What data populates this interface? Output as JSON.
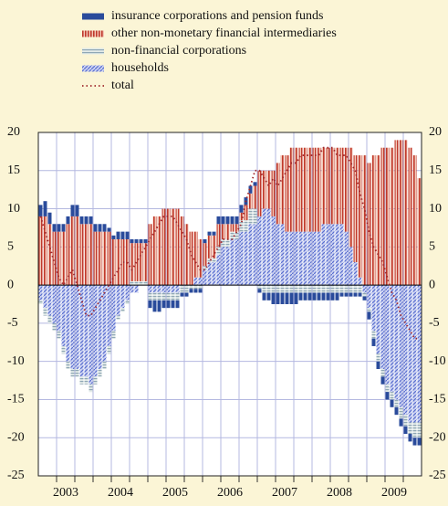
{
  "chart_data": {
    "type": "stacked_bar_line",
    "x_labels": [
      "2003",
      "2004",
      "2005",
      "2006",
      "2007",
      "2008",
      "2009"
    ],
    "ylim": [
      -25,
      20
    ],
    "yticks": [
      -25,
      -20,
      -15,
      -10,
      -5,
      0,
      5,
      10,
      15,
      20
    ],
    "grid": true,
    "series": [
      {
        "name": "insurance corporations and pension funds",
        "color": "#2a4b9b",
        "kind": "bar",
        "values": [
          1.5,
          2,
          1.5,
          1,
          1,
          1,
          1,
          1.5,
          1.5,
          1,
          1,
          1,
          1,
          1,
          1,
          0.5,
          0.5,
          1,
          1,
          1,
          0.5,
          0.5,
          0.5,
          0.5,
          -1,
          -1.5,
          -1.5,
          -1,
          -1,
          -1,
          -1,
          -0.5,
          -0.5,
          -0.5,
          -0.5,
          -0.5,
          0.5,
          0.5,
          0.5,
          1,
          1,
          1,
          1,
          1,
          1,
          1,
          1,
          0.5,
          -0.5,
          -1,
          -1,
          -1.5,
          -1.5,
          -1.5,
          -1.5,
          -1.5,
          -1.5,
          -1,
          -1,
          -1,
          -1,
          -1,
          -1,
          -1,
          -1,
          -1,
          -0.5,
          -0.5,
          -0.5,
          -0.5,
          -0.5,
          -0.5,
          -1,
          -1,
          -1,
          -1,
          -1,
          -1,
          -1,
          -1,
          -1,
          -1,
          -1,
          -1
        ]
      },
      {
        "name": "other non-monetary financial intermediaries",
        "color": "#c0392b",
        "kind": "bar",
        "values": [
          9,
          9,
          8,
          7,
          7,
          7,
          8,
          9,
          9,
          8,
          8,
          8,
          7,
          7,
          7,
          7,
          6,
          6,
          6,
          6,
          5,
          5,
          5,
          5,
          8,
          9,
          9,
          10,
          10,
          10,
          10,
          9,
          8,
          7,
          6,
          5,
          3,
          3,
          3,
          3,
          2,
          2,
          1,
          1,
          1,
          2,
          2,
          3,
          6,
          5,
          5,
          6,
          8,
          9,
          10,
          11,
          11,
          11,
          11,
          11,
          11,
          11,
          10,
          10,
          10,
          10,
          10,
          11,
          13,
          14,
          16,
          17,
          16,
          17,
          17,
          18,
          18,
          18,
          19,
          19,
          19,
          18,
          17,
          14
        ]
      },
      {
        "name": "non-financial corporations",
        "color": "#8fa7b5",
        "kind": "bar",
        "values": [
          -0.5,
          -1,
          -1,
          -1,
          -1,
          -1,
          -1,
          -1,
          -1,
          -1,
          -1,
          -1,
          -1,
          -1,
          -1,
          -1,
          -1,
          -0.5,
          -0.5,
          -0.5,
          0.5,
          0.5,
          0.5,
          0.5,
          -1,
          -1,
          -1,
          -1,
          -1,
          -1,
          -1,
          -1,
          -1,
          -0.5,
          -0.5,
          -0.5,
          0.5,
          0.5,
          0.5,
          1,
          1,
          1,
          1,
          1,
          1.5,
          1.5,
          2,
          2,
          -0.5,
          -1,
          -1,
          -1,
          -1,
          -1,
          -1,
          -1,
          -1,
          -1,
          -1,
          -1,
          -1,
          -1,
          -1,
          -1,
          -1,
          -1,
          -1,
          -1,
          -1,
          -1,
          -1,
          -0.5,
          -0.5,
          -1,
          -1,
          -1,
          -1,
          -1,
          -1,
          -1.5,
          -1.5,
          -1.5,
          -2,
          -2
        ]
      },
      {
        "name": "households",
        "color": "#5a6fd0",
        "kind": "bar",
        "values": [
          -2,
          -3,
          -4,
          -5,
          -6,
          -8,
          -10,
          -11,
          -11,
          -12,
          -12,
          -13,
          -12,
          -11,
          -10,
          -8,
          -6,
          -4,
          -3,
          -2,
          -1,
          -1,
          0,
          0,
          -1,
          -1,
          -1,
          -1,
          -1,
          -1,
          -1,
          0,
          0,
          0,
          1,
          1,
          2,
          3,
          3,
          4,
          5,
          5,
          6,
          6,
          7,
          7,
          8,
          8,
          9,
          10,
          10,
          9,
          8,
          8,
          7,
          7,
          7,
          7,
          7,
          7,
          7,
          7,
          8,
          8,
          8,
          8,
          8,
          7,
          5,
          3,
          1,
          -1,
          -3,
          -6,
          -9,
          -11,
          -13,
          -14,
          -15,
          -16,
          -17,
          -18,
          -18,
          -18
        ]
      },
      {
        "name": "total",
        "color": "#a0282c",
        "kind": "line",
        "values": [
          9,
          7,
          5,
          3,
          1,
          0,
          1,
          2,
          0,
          -2,
          -4,
          -4,
          -3,
          -2,
          -1,
          0,
          1,
          2,
          3,
          3,
          2,
          3,
          4,
          5,
          6,
          7,
          8,
          9,
          9,
          9,
          8,
          7,
          6,
          4,
          3,
          2,
          2,
          3,
          4,
          5,
          6,
          6,
          6,
          7,
          8,
          11,
          13,
          15,
          15,
          14,
          13,
          14,
          13,
          14,
          15,
          16,
          16,
          17,
          17,
          17,
          17,
          17,
          18,
          18,
          18,
          17,
          17,
          17,
          16,
          15,
          12,
          10,
          7,
          5,
          4,
          3,
          1,
          -1,
          -2,
          -4,
          -5,
          -6,
          -7,
          -7
        ]
      }
    ]
  }
}
